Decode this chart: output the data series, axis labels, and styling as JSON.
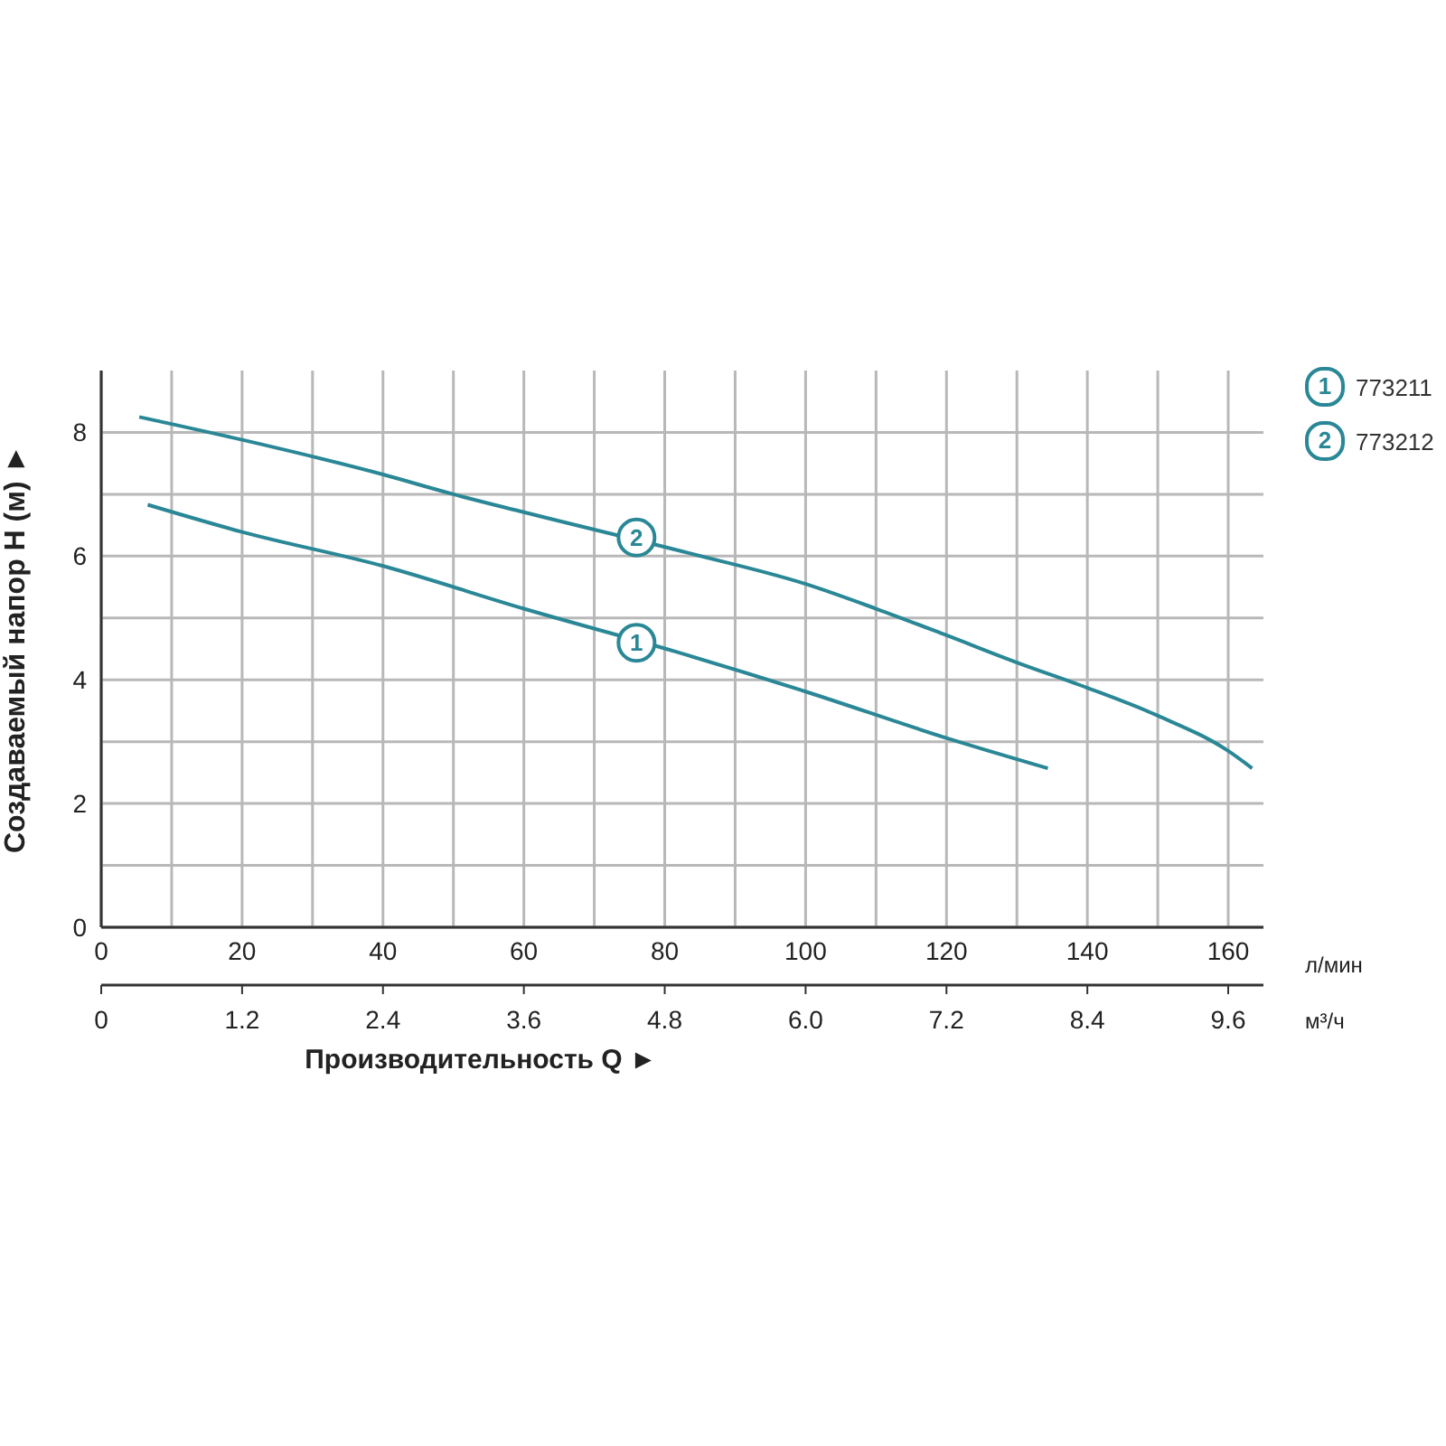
{
  "chart_data": {
    "type": "line",
    "ylabel": "Создаваемый напор H (м) ►",
    "xlabel": "Производительность Q ►",
    "xlim": [
      0,
      165
    ],
    "xticks": [
      0,
      {
        "value": 10,
        "label": null
      },
      20,
      {
        "value": 30,
        "label": null
      },
      40,
      {
        "value": 50,
        "label": null
      },
      60,
      {
        "value": 70,
        "label": null
      },
      80,
      {
        "value": 90,
        "label": null
      },
      100,
      {
        "value": 110,
        "label": null
      },
      120,
      {
        "value": 130,
        "label": null
      },
      140,
      {
        "value": 150,
        "label": null
      },
      160
    ],
    "x2lim": [
      0,
      9.9
    ],
    "x2ticks": [
      0,
      1.2,
      2.4,
      3.6,
      4.8,
      {
        "value": 6,
        "label": "6.0"
      },
      7.2,
      8.4,
      9.6
    ],
    "ylim": [
      0,
      9
    ],
    "yticks": [
      0,
      {
        "value": 1,
        "label": null
      },
      2,
      {
        "value": 3,
        "label": null
      },
      4,
      {
        "value": 5,
        "label": null
      },
      6,
      {
        "value": 7,
        "label": null
      },
      8
    ],
    "grid": true,
    "legend": "top right",
    "marker": "none",
    "line_style": "solid",
    "series": [
      {
        "name": "773211",
        "color": "#2a8796",
        "x": [
          6.6,
          20,
          40,
          60,
          81.7,
          100,
          120,
          134.4
        ],
        "values": [
          6.83,
          6.39,
          5.84,
          5.15,
          4.45,
          3.81,
          3.06,
          2.57
        ]
      },
      {
        "name": "773212",
        "color": "#2a8796",
        "x": [
          5.4,
          20,
          40,
          50,
          60,
          83.4,
          100,
          110,
          120,
          130,
          140,
          150,
          160,
          163.4
        ],
        "values": [
          8.25,
          7.88,
          7.32,
          7.0,
          6.71,
          6.05,
          5.55,
          5.15,
          4.72,
          4.28,
          3.87,
          3.42,
          2.85,
          2.57
        ]
      }
    ],
    "annotations": [
      {
        "text": "1",
        "x": 76,
        "y": 4.6
      },
      {
        "text": "2",
        "x": 76,
        "y": 6.3
      },
      "л/мин",
      "м³/ч"
    ]
  }
}
